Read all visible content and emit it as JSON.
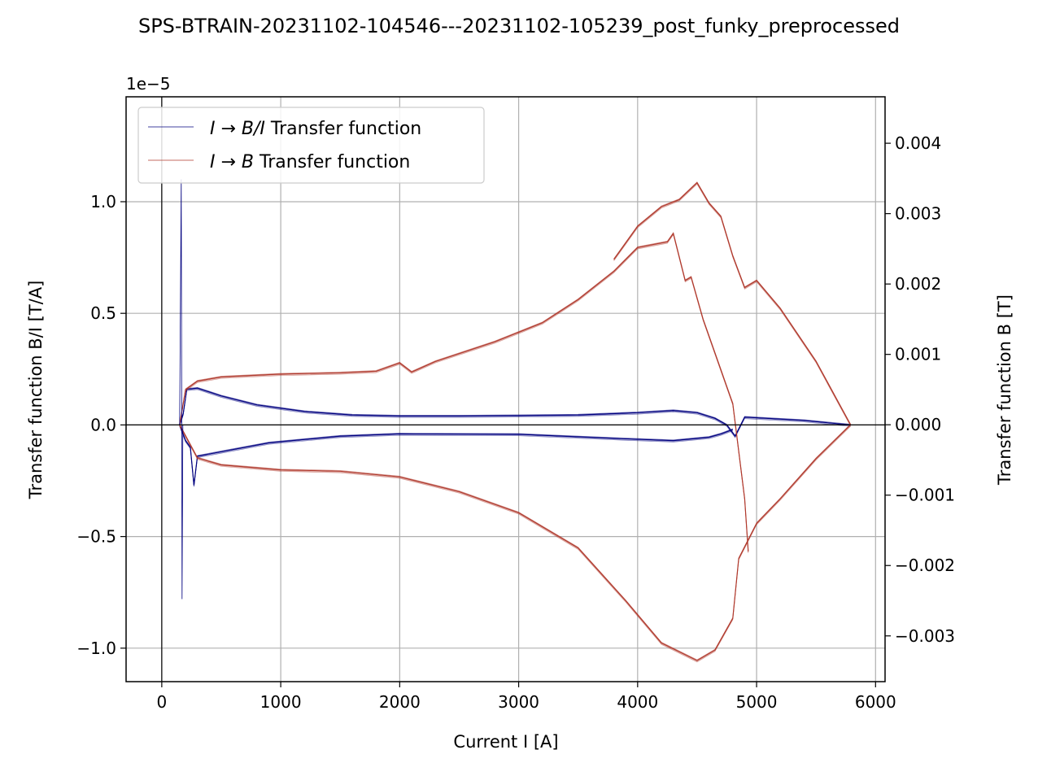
{
  "chart_data": {
    "type": "line",
    "title": "SPS-BTRAIN-20231102-104546---20231102-105239_post_funky_preprocessed",
    "xlabel": "Current I [A]",
    "ylabel_left": "Transfer function B/I [T/A]",
    "ylabel_right": "Transfer function B [T]",
    "left_offset_text": "1e−5",
    "xlim": [
      -300,
      6080
    ],
    "ylim_left": [
      -1.15,
      1.47
    ],
    "ylim_right": [
      -0.00365,
      0.00466
    ],
    "xticks": [
      0,
      1000,
      2000,
      3000,
      4000,
      5000,
      6000
    ],
    "xtick_labels": [
      "0",
      "1000",
      "2000",
      "3000",
      "4000",
      "5000",
      "6000"
    ],
    "yticks_left": [
      -1.0,
      -0.5,
      0.0,
      0.5,
      1.0
    ],
    "ytick_labels_left": [
      "−1.0",
      "−0.5",
      "0.0",
      "0.5",
      "1.0"
    ],
    "yticks_right": [
      -0.003,
      -0.002,
      -0.001,
      0.0,
      0.001,
      0.002,
      0.003,
      0.004
    ],
    "ytick_labels_right": [
      "−0.003",
      "−0.002",
      "−0.001",
      "0.000",
      "0.001",
      "0.002",
      "0.003",
      "0.004"
    ],
    "grid": true,
    "legend_position": "top-left",
    "reference_lines": {
      "x": 0,
      "y": 0
    },
    "series": [
      {
        "name": "I → B/I Transfer function",
        "legend_label": {
          "i": "I",
          "arrow": " → ",
          "expr": "B/I",
          "rest": " Transfer function"
        },
        "axis": "left",
        "color": "#00007f",
        "upper_branch": [
          [
            150,
            0.0
          ],
          [
            180,
            0.05
          ],
          [
            210,
            0.16
          ],
          [
            300,
            0.165
          ],
          [
            500,
            0.13
          ],
          [
            800,
            0.09
          ],
          [
            1200,
            0.06
          ],
          [
            1600,
            0.045
          ],
          [
            2000,
            0.04
          ],
          [
            2500,
            0.04
          ],
          [
            3000,
            0.042
          ],
          [
            3500,
            0.045
          ],
          [
            4000,
            0.055
          ],
          [
            4300,
            0.065
          ],
          [
            4500,
            0.055
          ],
          [
            4650,
            0.03
          ],
          [
            4750,
            0.0
          ],
          [
            4820,
            -0.05
          ],
          [
            4900,
            0.035
          ],
          [
            5400,
            0.02
          ],
          [
            5790,
            0.0
          ]
        ],
        "lower_branch": [
          [
            150,
            0.0
          ],
          [
            200,
            -0.07
          ],
          [
            240,
            -0.1
          ],
          [
            270,
            -0.27
          ],
          [
            300,
            -0.14
          ],
          [
            500,
            -0.12
          ],
          [
            900,
            -0.08
          ],
          [
            1500,
            -0.05
          ],
          [
            2000,
            -0.04
          ],
          [
            3000,
            -0.042
          ],
          [
            3800,
            -0.06
          ],
          [
            4300,
            -0.07
          ],
          [
            4600,
            -0.055
          ],
          [
            4700,
            -0.04
          ],
          [
            4800,
            -0.02
          ]
        ]
      },
      {
        "name": "I → B Transfer function",
        "legend_label": {
          "i": "I",
          "arrow": " → ",
          "expr": "B",
          "rest": " Transfer function"
        },
        "axis": "right",
        "color": "#b03a2e",
        "upper_branch": [
          [
            150,
            0.0
          ],
          [
            200,
            0.0005
          ],
          [
            300,
            0.00062
          ],
          [
            500,
            0.00068
          ],
          [
            1000,
            0.00072
          ],
          [
            1500,
            0.00074
          ],
          [
            1800,
            0.00076
          ],
          [
            2000,
            0.00088
          ],
          [
            2100,
            0.00075
          ],
          [
            2300,
            0.0009
          ],
          [
            2800,
            0.00118
          ],
          [
            3200,
            0.00145
          ],
          [
            3500,
            0.00178
          ],
          [
            3800,
            0.00218
          ],
          [
            4000,
            0.00252
          ],
          [
            4250,
            0.0026
          ],
          [
            4300,
            0.00272
          ],
          [
            4400,
            0.00205
          ],
          [
            4450,
            0.0021
          ],
          [
            4550,
            0.0015
          ],
          [
            4800,
            0.0003
          ],
          [
            4900,
            -0.00105
          ],
          [
            4930,
            -0.0018
          ]
        ],
        "upper_branch_outer": [
          [
            3800,
            0.00235
          ],
          [
            4000,
            0.00282
          ],
          [
            4200,
            0.0031
          ],
          [
            4350,
            0.0032
          ],
          [
            4500,
            0.00344
          ],
          [
            4600,
            0.00315
          ],
          [
            4700,
            0.00296
          ],
          [
            4800,
            0.0024
          ],
          [
            4900,
            0.00195
          ],
          [
            5000,
            0.00205
          ],
          [
            5200,
            0.00165
          ],
          [
            5500,
            0.0009
          ],
          [
            5790,
            0.0
          ]
        ],
        "lower_branch": [
          [
            150,
            0.0
          ],
          [
            300,
            -0.00047
          ],
          [
            500,
            -0.00057
          ],
          [
            1000,
            -0.00064
          ],
          [
            1500,
            -0.00066
          ],
          [
            2000,
            -0.00074
          ],
          [
            2500,
            -0.00095
          ],
          [
            3000,
            -0.00125
          ],
          [
            3500,
            -0.00175
          ],
          [
            3900,
            -0.0025
          ],
          [
            4200,
            -0.0031
          ],
          [
            4500,
            -0.00335
          ],
          [
            4650,
            -0.0032
          ],
          [
            4800,
            -0.00275
          ],
          [
            4850,
            -0.0019
          ],
          [
            5000,
            -0.0014
          ],
          [
            5200,
            -0.00105
          ],
          [
            5500,
            -0.00048
          ],
          [
            5790,
            0.0
          ]
        ]
      }
    ]
  }
}
